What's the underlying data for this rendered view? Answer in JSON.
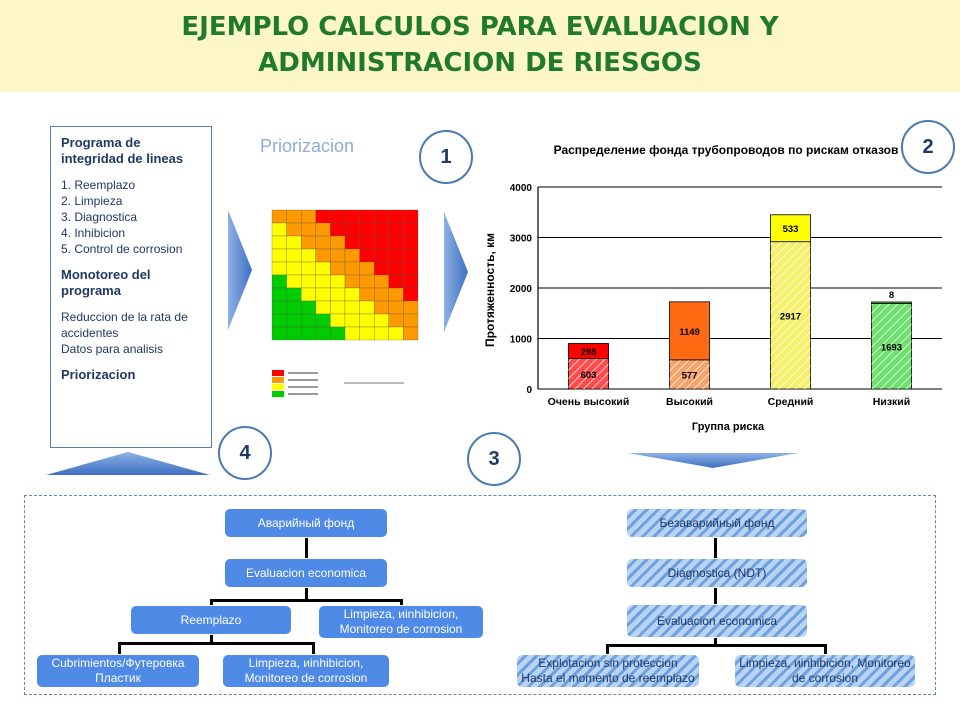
{
  "header": {
    "title_line1": "EJEMPLO CALCULOS PARA EVALUACION Y",
    "title_line2": "ADMINISTRACION DE RIESGOS"
  },
  "program_box": {
    "heading": "Programa de integridad de lineas",
    "items": [
      "1. Reemplazo",
      "2. Limpieza",
      "3. Diagnostica",
      "4. Inhibicion",
      "5. Control de corrosion"
    ],
    "monitor_heading": "Monotoreo del programa",
    "monitor_items": [
      "Reduccion de la rata de accidentes",
      "Datos para analisis"
    ],
    "footer": "Priorizacion"
  },
  "steps": {
    "one": "1",
    "two": "2",
    "three": "3",
    "four": "4"
  },
  "priorizacion_label": "Priorizacion",
  "matrix": {
    "colors": {
      "red": "#ff0000",
      "orange": "#ff9900",
      "yellow": "#ffff00",
      "green": "#00cc00"
    }
  },
  "chart_data": {
    "type": "bar",
    "title": "Распределение фонда трубопроводов по рискам отказов",
    "xlabel": "Группа риска",
    "ylabel": "Протяженность, км",
    "categories": [
      "Очень высокий",
      "Высокий",
      "Средний",
      "Низкий"
    ],
    "ylim": [
      0,
      4000
    ],
    "yticks": [
      0,
      1000,
      2000,
      3000,
      4000
    ],
    "series": [
      {
        "values": [
          603,
          577,
          2917,
          1693
        ],
        "colors": [
          "#ff4b4b",
          "#f4a36a",
          "#f4f06a",
          "#6ee06e"
        ],
        "hatched": true
      },
      {
        "values": [
          298,
          1149,
          533,
          8
        ],
        "colors": [
          "#ff0000",
          "#ff6a13",
          "#ffff00",
          "#33cc33"
        ],
        "hatched": false
      }
    ],
    "grid": true
  },
  "tree_left": {
    "root": "Аварийный фонд",
    "level2": "Evaluacion economica",
    "level3_a": "Reemplazo",
    "level3_b": "Limpieza, иinhibicion, Monitoreo de corrosion",
    "level4_a": "Cubrimientos/Футеровка Пластик",
    "level4_b": "Limpieza, иinhibicion, Monitoreo de corrosion"
  },
  "tree_right": {
    "root": "Безаварийный фонд",
    "level2": "Diagnostica (NDT)",
    "level3": "Evaluacion economica",
    "level4_a": "Explotacion sin proteccion Hasta el momento de reemplazo",
    "level4_b": "Limpieza, иinhibicion, Monitoreo de corrosion"
  }
}
